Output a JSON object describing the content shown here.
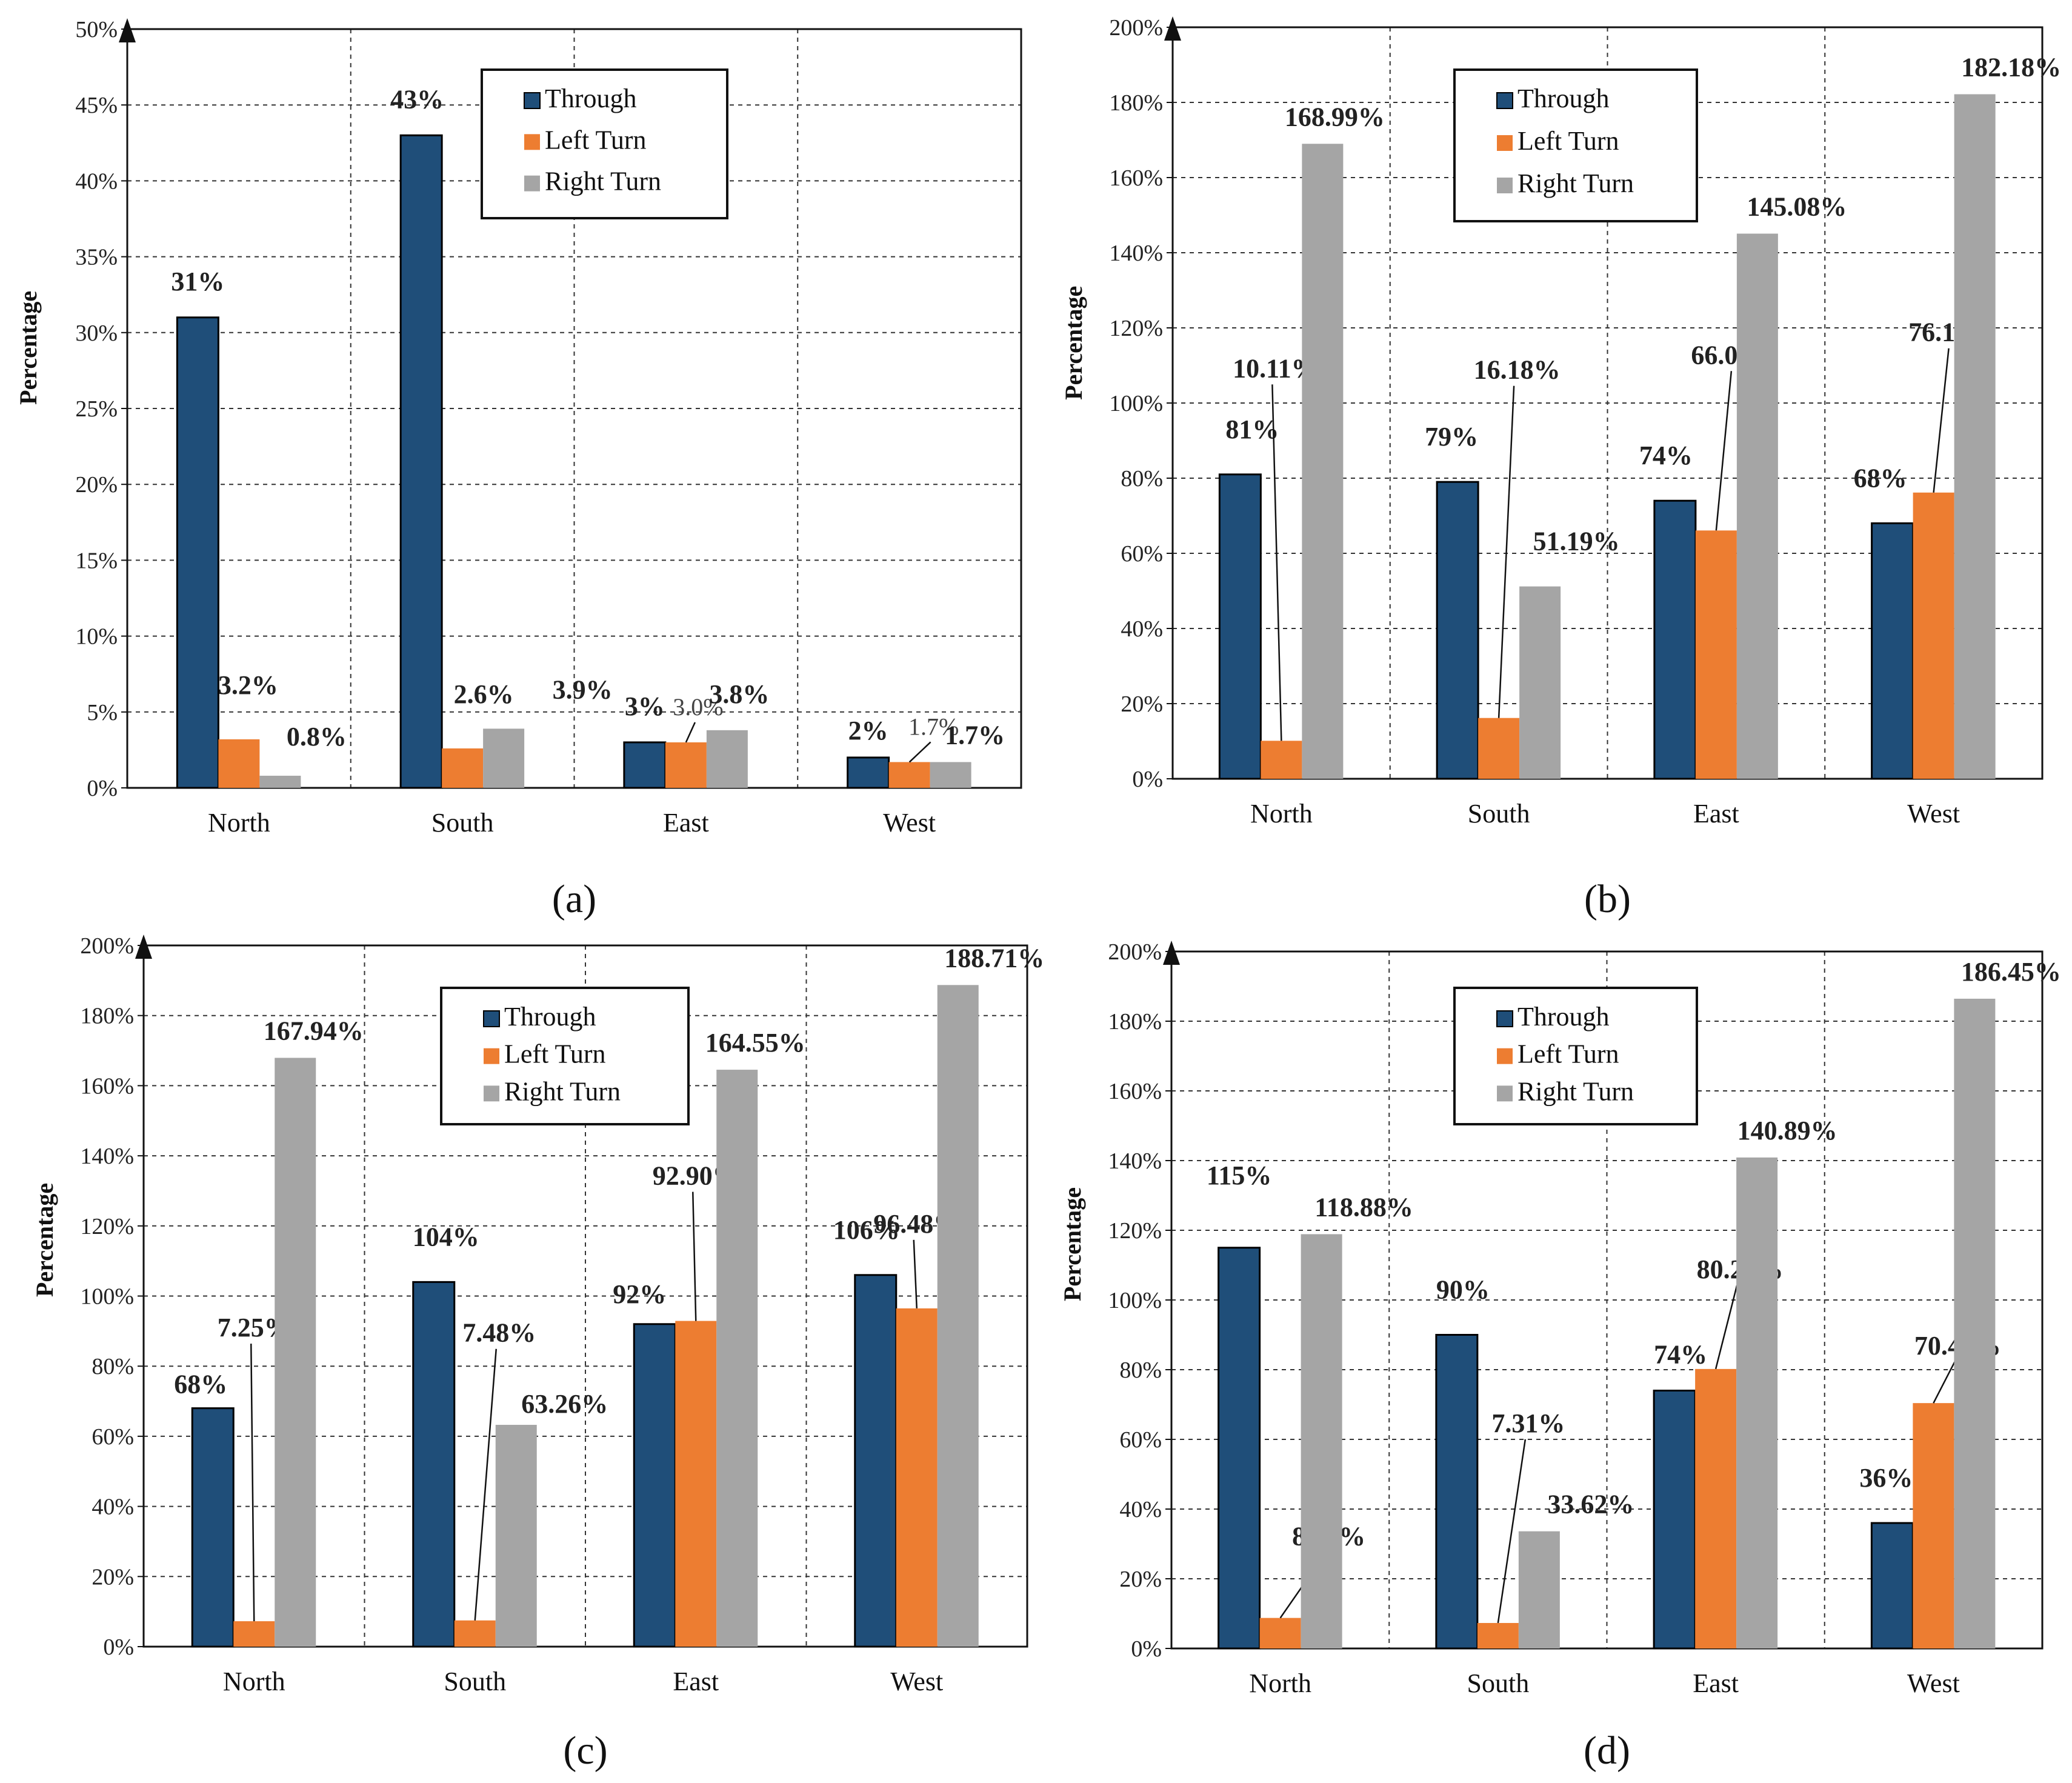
{
  "colors": {
    "through": "#1f4e79",
    "left": "#ed7d31",
    "right": "#a5a5a5"
  },
  "chart_data": [
    {
      "type": "bar",
      "caption": "(a)",
      "ylabel": "Percentage",
      "ylim": [
        0,
        50
      ],
      "yticks": [
        "0%",
        "5%",
        "10%",
        "15%",
        "20%",
        "25%",
        "30%",
        "35%",
        "40%",
        "45%",
        "50%"
      ],
      "categories": [
        "North",
        "South",
        "East",
        "West"
      ],
      "grid": true,
      "legend_position": "top-right",
      "series": [
        {
          "name": "Through",
          "values": [
            31,
            43,
            3,
            2
          ],
          "labels": [
            "31%",
            "43%",
            "3%",
            "2%"
          ]
        },
        {
          "name": "Left Turn",
          "values": [
            3.2,
            2.6,
            3.0,
            1.7
          ],
          "labels": [
            "3.2%",
            "2.6%",
            "3.0%",
            "1.7%"
          ]
        },
        {
          "name": "Right Turn",
          "values": [
            0.8,
            3.9,
            3.8,
            1.7
          ],
          "labels": [
            "0.8%",
            "3.9%",
            "3.8%",
            "1.7%"
          ]
        }
      ]
    },
    {
      "type": "bar",
      "caption": "(b)",
      "ylabel": "Percentage",
      "ylim": [
        0,
        200
      ],
      "yticks": [
        "0%",
        "20%",
        "40%",
        "60%",
        "80%",
        "100%",
        "120%",
        "140%",
        "160%",
        "180%",
        "200%"
      ],
      "categories": [
        "North",
        "South",
        "East",
        "West"
      ],
      "grid": true,
      "legend_position": "top",
      "series": [
        {
          "name": "Through",
          "values": [
            81,
            79,
            74,
            68
          ],
          "labels": [
            "81%",
            "79%",
            "74%",
            "68%"
          ]
        },
        {
          "name": "Left Turn",
          "values": [
            10.11,
            16.18,
            66.08,
            76.17
          ],
          "labels": [
            "10.11%",
            "16.18%",
            "66.08%",
            "76.17%"
          ]
        },
        {
          "name": "Right Turn",
          "values": [
            168.99,
            51.19,
            145.08,
            182.18
          ],
          "labels": [
            "168.99%",
            "51.19%",
            "145.08%",
            "182.18%"
          ]
        }
      ]
    },
    {
      "type": "bar",
      "caption": "(c)",
      "ylabel": "Percentage",
      "ylim": [
        0,
        200
      ],
      "yticks": [
        "0%",
        "20%",
        "40%",
        "60%",
        "80%",
        "100%",
        "120%",
        "140%",
        "160%",
        "180%",
        "200%"
      ],
      "categories": [
        "North",
        "South",
        "East",
        "West"
      ],
      "grid": true,
      "legend_position": "top",
      "series": [
        {
          "name": "Through",
          "values": [
            68,
            104,
            92,
            106
          ],
          "labels": [
            "68%",
            "104%",
            "92%",
            "106%"
          ]
        },
        {
          "name": "Left Turn",
          "values": [
            7.25,
            7.48,
            92.9,
            96.48
          ],
          "labels": [
            "7.25%",
            "7.48%",
            "92.90%",
            "96.48%"
          ]
        },
        {
          "name": "Right Turn",
          "values": [
            167.94,
            63.26,
            164.55,
            188.71
          ],
          "labels": [
            "167.94%",
            "63.26%",
            "164.55%",
            "188.71%"
          ]
        }
      ]
    },
    {
      "type": "bar",
      "caption": "(d)",
      "ylabel": "Percentage",
      "ylim": [
        0,
        200
      ],
      "yticks": [
        "0%",
        "20%",
        "40%",
        "60%",
        "80%",
        "100%",
        "120%",
        "140%",
        "160%",
        "180%",
        "200%"
      ],
      "categories": [
        "North",
        "South",
        "East",
        "West"
      ],
      "grid": true,
      "legend_position": "top",
      "series": [
        {
          "name": "Through",
          "values": [
            115,
            90,
            74,
            36
          ],
          "labels": [
            "115%",
            "90%",
            "74%",
            "36%"
          ]
        },
        {
          "name": "Left Turn",
          "values": [
            8.76,
            7.31,
            80.2,
            70.41
          ],
          "labels": [
            "8.76%",
            "7.31%",
            "80.20%",
            "70.41%"
          ]
        },
        {
          "name": "Right Turn",
          "values": [
            118.88,
            33.62,
            140.89,
            186.45
          ],
          "labels": [
            "118.88%",
            "33.62%",
            "140.89%",
            "186.45%"
          ]
        }
      ]
    }
  ]
}
